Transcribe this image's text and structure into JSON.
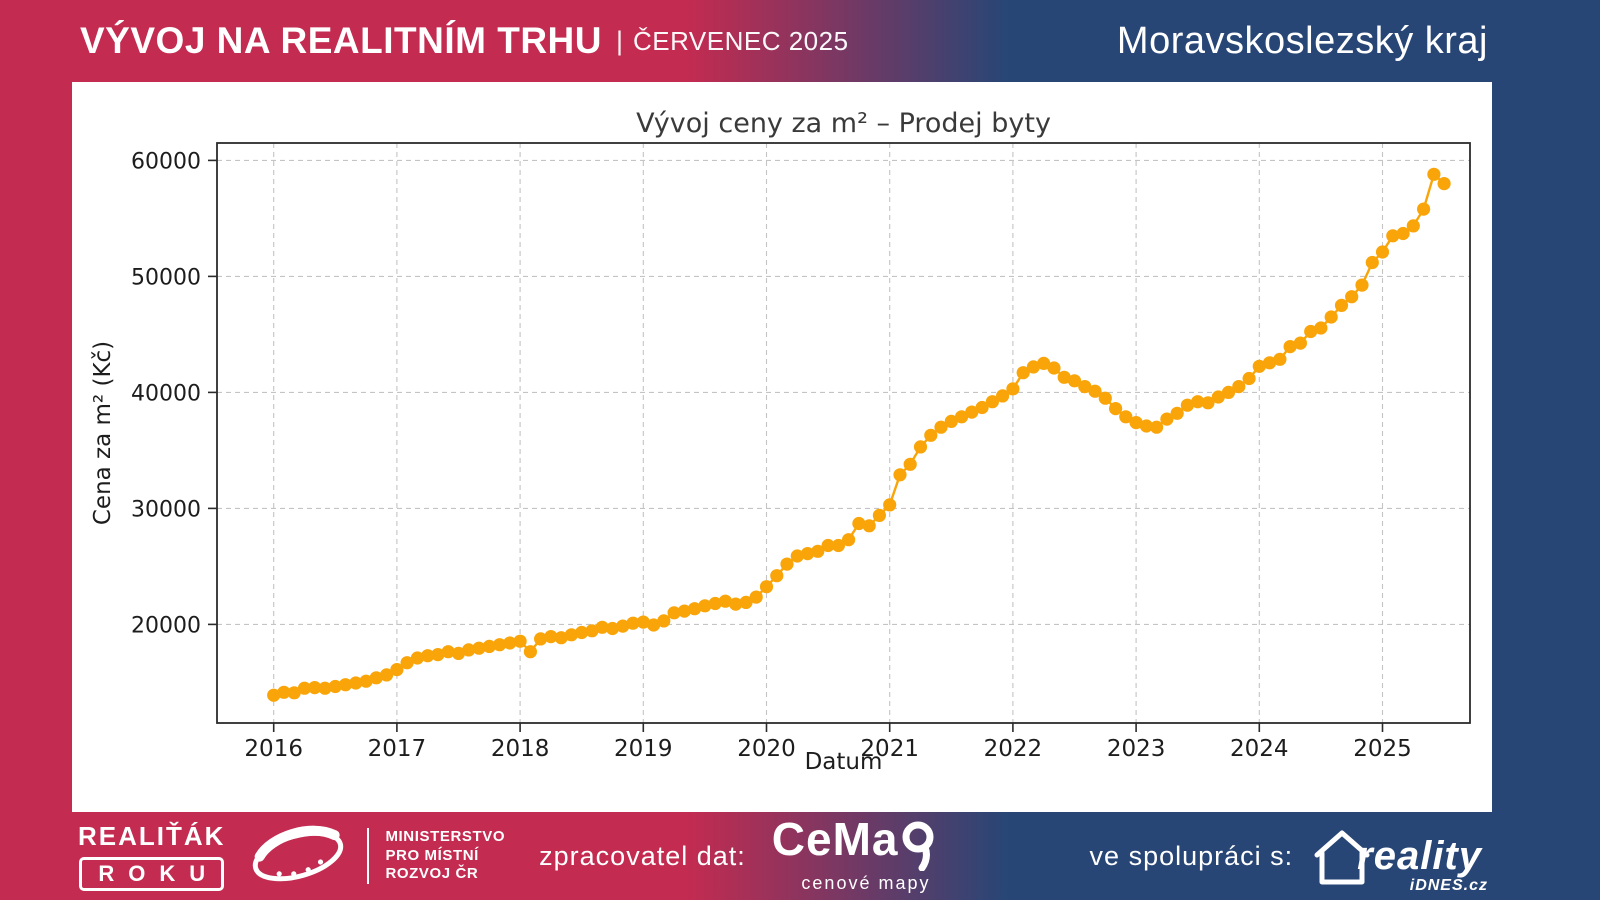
{
  "header": {
    "title": "VÝVOJ NA REALITNÍM TRHU",
    "separator": "|",
    "period": "ČERVENEC 2025",
    "region": "Moravskoslezský kraj"
  },
  "footer": {
    "award_name": "REALIŤÁK",
    "award_year_word": "ROKU",
    "ministry_lines": [
      "MINISTERSTVO",
      "PRO MÍSTNÍ",
      "ROZVOJ ČR"
    ],
    "provider_label": "zpracovatel dat:",
    "cemap_text": "CeMa",
    "cemap_sub": "cenové mapy",
    "partner_label": "ve spolupráci s:",
    "partner_name": "reality",
    "partner_sub": "iDNES.cz"
  },
  "colors": {
    "crimson": "#C32B51",
    "dark_blue": "#274676",
    "panel": "#FFFFFF",
    "orange": "#F9A50A",
    "grid": "#C4C4C4",
    "axis": "#2B2B2B",
    "text": "#1D1D1D",
    "title_text": "#3A3A3A"
  },
  "chart_data": {
    "type": "line",
    "title": "Vývoj ceny za m² – Prodej byty",
    "xlabel": "Datum",
    "ylabel": "Cena za m² (Kč)",
    "grid": true,
    "legend": "none",
    "marker": "circle",
    "marker_color": "#F9A50A",
    "grid_color": "#C4C4C4",
    "x_ticks": [
      2016,
      2017,
      2018,
      2019,
      2020,
      2021,
      2022,
      2023,
      2024,
      2025
    ],
    "y_ticks": [
      20000,
      30000,
      40000,
      50000,
      60000
    ],
    "xlim": [
      2015.54,
      2025.71
    ],
    "ylim": [
      11500,
      61500
    ],
    "series": [
      {
        "name": "Prodej byty – cena za m² (Kč)",
        "start": "2016-01",
        "frequency": "monthly",
        "values": [
          13900,
          14150,
          14100,
          14500,
          14550,
          14500,
          14650,
          14800,
          14950,
          15100,
          15400,
          15650,
          16100,
          16700,
          17100,
          17300,
          17400,
          17650,
          17500,
          17800,
          17950,
          18100,
          18250,
          18400,
          18550,
          17650,
          18750,
          18950,
          18850,
          19100,
          19300,
          19450,
          19750,
          19650,
          19850,
          20100,
          20200,
          19950,
          20300,
          21000,
          21150,
          21350,
          21600,
          21800,
          22000,
          21750,
          21900,
          22350,
          23250,
          24200,
          25200,
          25900,
          26100,
          26300,
          26800,
          26800,
          27300,
          28700,
          28500,
          29400,
          30300,
          32900,
          33800,
          35300,
          36300,
          37000,
          37500,
          37900,
          38300,
          38700,
          39200,
          39700,
          40300,
          41700,
          42200,
          42500,
          42100,
          41300,
          41000,
          40500,
          40100,
          39500,
          38600,
          37900,
          37400,
          37100,
          37000,
          37700,
          38200,
          38900,
          39200,
          39100,
          39600,
          40000,
          40500,
          41200,
          42250,
          42550,
          42850,
          43950,
          44250,
          45250,
          45550,
          46500,
          47500,
          48250,
          49250,
          51200,
          52100,
          53500,
          53700,
          54350,
          55800,
          58800,
          58000
        ]
      }
    ]
  }
}
